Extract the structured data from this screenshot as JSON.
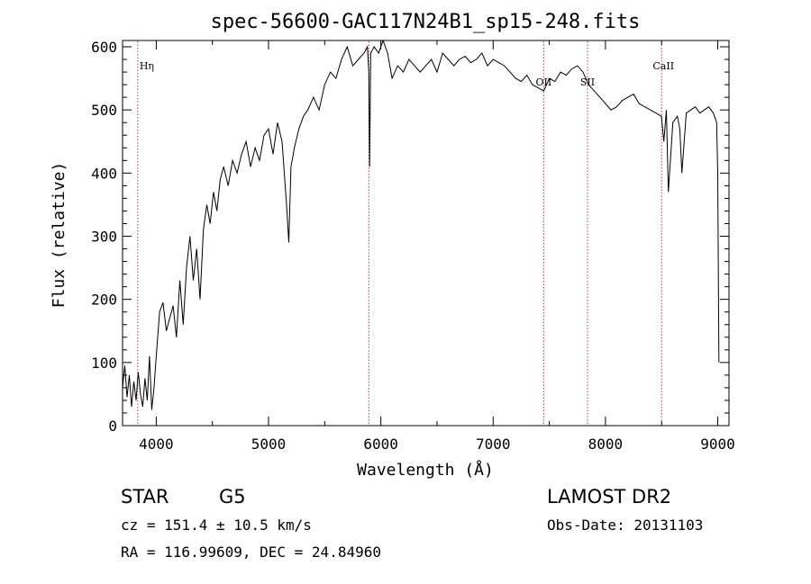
{
  "chart_data": {
    "type": "line",
    "title": "spec-56600-GAC117N24B1_sp15-248.fits",
    "xlabel": "Wavelength (Å)",
    "ylabel": "Flux (relative)",
    "xlim": [
      3700,
      9100
    ],
    "ylim": [
      0,
      610
    ],
    "xticks": [
      4000,
      5000,
      6000,
      7000,
      8000,
      9000
    ],
    "yticks": [
      0,
      100,
      200,
      300,
      400,
      500,
      600
    ],
    "grid": false,
    "line_color": "#000000",
    "marker_color": "#c0392b",
    "series": [
      {
        "x": [
          3700,
          3720,
          3740,
          3760,
          3780,
          3800,
          3820,
          3840,
          3860,
          3880,
          3900,
          3920,
          3940,
          3960,
          3980,
          4000,
          4030,
          4060,
          4090,
          4120,
          4150,
          4180,
          4210,
          4240,
          4270,
          4300,
          4330,
          4360,
          4390,
          4420,
          4450,
          4480,
          4510,
          4540,
          4570,
          4600,
          4640,
          4680,
          4720,
          4760,
          4800,
          4840,
          4880,
          4920,
          4960,
          5000,
          5040,
          5080,
          5120,
          5160,
          5180,
          5200,
          5230,
          5270,
          5310,
          5350,
          5400,
          5450,
          5500,
          5550,
          5600,
          5650,
          5700,
          5750,
          5800,
          5850,
          5880,
          5893,
          5900,
          5910,
          5940,
          5980,
          6020,
          6060,
          6100,
          6150,
          6200,
          6250,
          6300,
          6350,
          6400,
          6450,
          6500,
          6550,
          6600,
          6650,
          6700,
          6750,
          6800,
          6850,
          6900,
          6950,
          7000,
          7050,
          7100,
          7150,
          7200,
          7250,
          7300,
          7350,
          7400,
          7450,
          7500,
          7550,
          7600,
          7650,
          7700,
          7750,
          7800,
          7850,
          7900,
          7950,
          8000,
          8050,
          8100,
          8150,
          8200,
          8250,
          8300,
          8350,
          8400,
          8450,
          8498,
          8520,
          8542,
          8560,
          8600,
          8640,
          8662,
          8680,
          8720,
          8760,
          8800,
          8840,
          8880,
          8920,
          8960,
          8990,
          9000,
          9010
        ],
        "y": [
          60,
          95,
          45,
          80,
          30,
          70,
          40,
          85,
          50,
          30,
          75,
          40,
          110,
          25,
          60,
          110,
          180,
          195,
          150,
          170,
          190,
          140,
          230,
          160,
          250,
          300,
          230,
          280,
          200,
          310,
          350,
          320,
          370,
          340,
          390,
          410,
          380,
          420,
          400,
          430,
          450,
          410,
          440,
          420,
          460,
          470,
          430,
          480,
          450,
          350,
          290,
          410,
          440,
          470,
          490,
          500,
          520,
          500,
          540,
          560,
          550,
          580,
          600,
          570,
          580,
          590,
          600,
          560,
          410,
          590,
          600,
          590,
          610,
          590,
          550,
          570,
          560,
          580,
          570,
          560,
          570,
          580,
          560,
          590,
          580,
          570,
          580,
          585,
          575,
          580,
          590,
          570,
          580,
          575,
          570,
          560,
          550,
          545,
          555,
          540,
          535,
          530,
          550,
          545,
          560,
          555,
          565,
          570,
          560,
          540,
          530,
          520,
          510,
          500,
          505,
          515,
          520,
          525,
          510,
          505,
          500,
          495,
          490,
          450,
          500,
          370,
          480,
          490,
          470,
          400,
          495,
          500,
          505,
          495,
          500,
          505,
          495,
          480,
          400,
          100
        ]
      }
    ],
    "line_markers": [
      {
        "label": "Hη",
        "x": 3835
      },
      {
        "label": "",
        "x": 5893
      },
      {
        "label": "OII",
        "x": 7450
      },
      {
        "label": "SII",
        "x": 7840
      },
      {
        "label": "CaII",
        "x": 8500
      }
    ]
  },
  "info": {
    "object_class": "STAR",
    "subclass": "G5",
    "survey": "LAMOST DR2",
    "redshift": "cz = 151.4 ± 10.5 km/s",
    "obs_date": "Obs-Date: 20131103",
    "coords": "RA = 116.99609, DEC =  24.84960"
  }
}
